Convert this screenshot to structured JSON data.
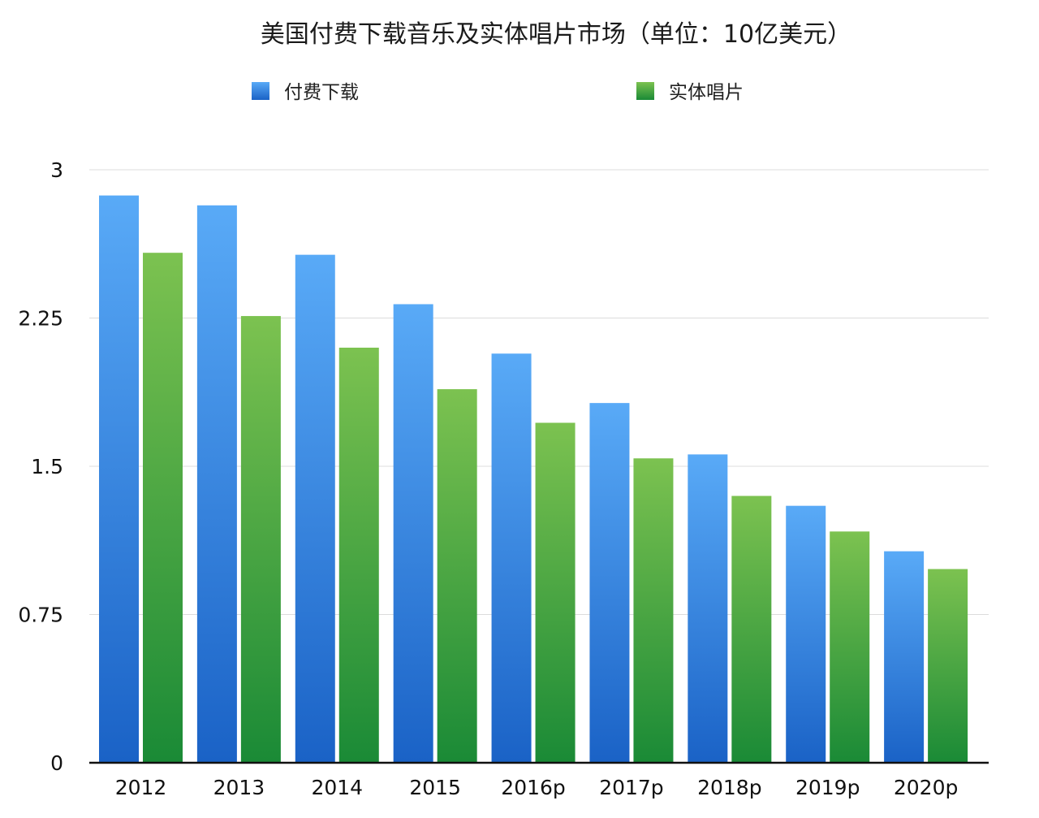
{
  "chart_data": {
    "type": "bar",
    "title": "美国付费下载音乐及实体唱片市场（单位：10亿美元）",
    "xlabel": "",
    "ylabel": "",
    "ylim": [
      0,
      3
    ],
    "yticks": [
      "0",
      "0.75",
      "1.5",
      "2.25",
      "3"
    ],
    "ytick_values": [
      0,
      0.75,
      1.5,
      2.25,
      3
    ],
    "grid": true,
    "legend_position": "top",
    "categories": [
      "2012",
      "2013",
      "2014",
      "2015",
      "2016p",
      "2017p",
      "2018p",
      "2019p",
      "2020p"
    ],
    "series": [
      {
        "name": "付费下载",
        "color": "#3a8ee6",
        "color_top": "#59aaf7",
        "color_bottom": "#1a62c6",
        "values": [
          2.87,
          2.82,
          2.57,
          2.32,
          2.07,
          1.82,
          1.56,
          1.3,
          1.07
        ]
      },
      {
        "name": "实体唱片",
        "color": "#3e9e3e",
        "color_top": "#7cc250",
        "color_bottom": "#1a8a36",
        "values": [
          2.58,
          2.26,
          2.1,
          1.89,
          1.72,
          1.54,
          1.35,
          1.17,
          0.98
        ]
      }
    ]
  }
}
